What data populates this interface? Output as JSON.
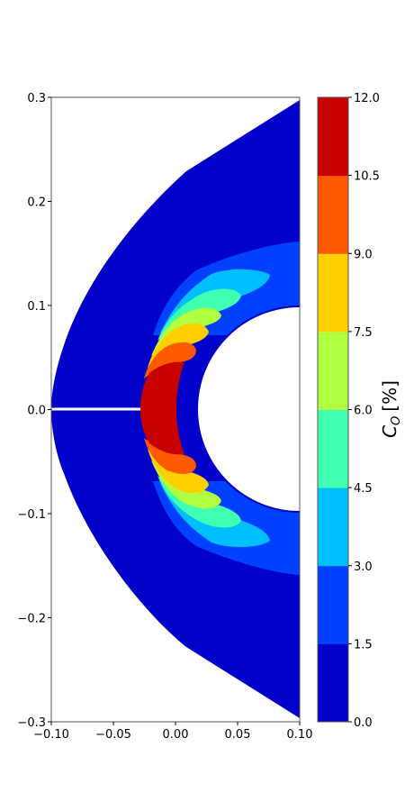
{
  "chart_data": {
    "type": "contour",
    "x_ticks": [
      "−0.10",
      "−0.05",
      "0.00",
      "0.05",
      "0.10"
    ],
    "y_ticks": [
      "0.3",
      "0.2",
      "0.1",
      "0.0",
      "−0.1",
      "−0.2",
      "−0.3"
    ],
    "xlim": [
      -0.1,
      0.1
    ],
    "ylim": [
      -0.3,
      0.3
    ],
    "colorbar": {
      "label_main": "C",
      "label_sub": "O",
      "label_unit": "[%]",
      "tick_labels": [
        "12.0",
        "10.5",
        "9.0",
        "7.5",
        "6.0",
        "4.5",
        "3.0",
        "1.5",
        "0.0"
      ],
      "levels": [
        0,
        1.5,
        3.0,
        4.5,
        6.0,
        7.5,
        9.0,
        10.5,
        12.0
      ],
      "colors": [
        "#0000c8",
        "#0040ff",
        "#00bfff",
        "#40ffb0",
        "#b0ff40",
        "#ffd000",
        "#ff5a00",
        "#c80000"
      ]
    },
    "domain": {
      "outer_shock": "parabolic bow, x from -0.10 at y=0 to 0.10 at y=±0.30",
      "body": "circle, center (0.10, 0.0), radius 0.10"
    },
    "bands": [
      {
        "level": "1.5–3.0",
        "color": "#0040ff"
      },
      {
        "level": "3.0–4.5",
        "color": "#00bfff"
      },
      {
        "level": "4.5–6.0",
        "color": "#40ffb0"
      },
      {
        "level": "6.0–7.5",
        "color": "#b0ff40"
      },
      {
        "level": "7.5–9.0",
        "color": "#ffd000"
      },
      {
        "level": "9.0–10.5",
        "color": "#ff5a00"
      },
      {
        "level": "10.5–12.0",
        "color": "#c80000"
      }
    ],
    "grid": false
  }
}
